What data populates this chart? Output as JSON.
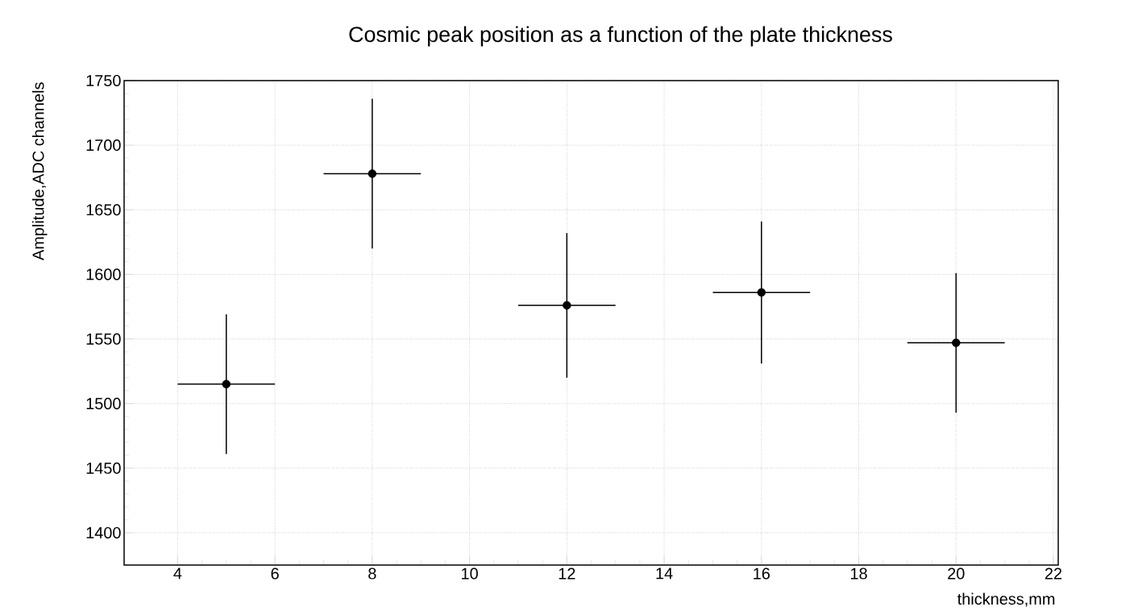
{
  "chart_data": {
    "type": "scatter",
    "title": "Cosmic peak position as a function of the plate thickness",
    "xlabel": "thickness,mm",
    "ylabel": "Amplitude,ADC channels",
    "x": [
      5,
      8,
      12,
      16,
      20
    ],
    "values": [
      1515,
      1678,
      1576,
      1586,
      1547
    ],
    "errors": [
      54,
      58,
      56,
      55,
      54
    ],
    "xerrors": [
      1,
      1,
      1,
      1,
      1
    ],
    "color": "#000000",
    "marker": "circle",
    "grid": true,
    "xlim": [
      2.9,
      22.1
    ],
    "xticks": [
      4,
      6,
      8,
      10,
      12,
      14,
      16,
      18,
      20,
      22
    ],
    "ylim": [
      1375,
      1750
    ],
    "yticks": [
      1400,
      1450,
      1500,
      1550,
      1600,
      1650,
      1700,
      1750
    ]
  }
}
